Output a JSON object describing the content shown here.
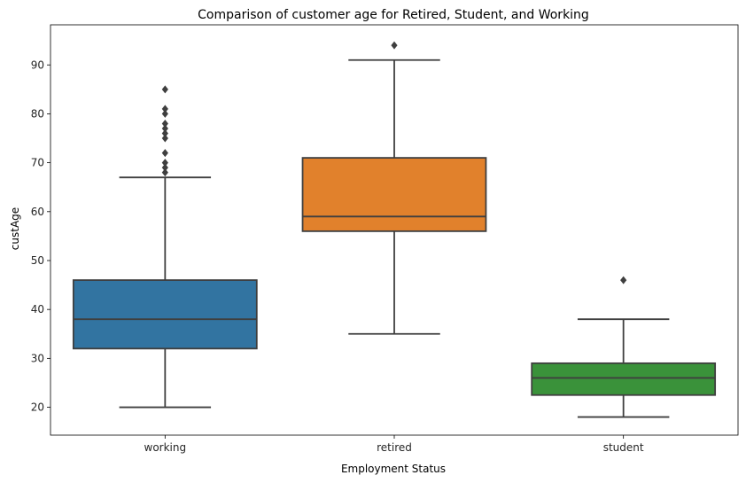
{
  "chart_data": {
    "type": "box",
    "title": "Comparison of customer age for Retired, Student, and Working",
    "xlabel": "Employment Status",
    "ylabel": "custAge",
    "ylim": [
      14.3,
      98.2
    ],
    "yticks": [
      20,
      30,
      40,
      50,
      60,
      70,
      80,
      90
    ],
    "categories": [
      "working",
      "retired",
      "student"
    ],
    "grid": false,
    "legend": "none",
    "boxes": [
      {
        "category": "working",
        "color": "#3274a1",
        "whisker_low": 20,
        "q1": 32,
        "median": 38,
        "q3": 46,
        "whisker_high": 67,
        "outliers": [
          68,
          69,
          70,
          72,
          75,
          76,
          77,
          78,
          80,
          81,
          85
        ]
      },
      {
        "category": "retired",
        "color": "#e1812c",
        "whisker_low": 35,
        "q1": 56,
        "median": 59,
        "q3": 71,
        "whisker_high": 91,
        "outliers": [
          94
        ]
      },
      {
        "category": "student",
        "color": "#3a923a",
        "whisker_low": 18,
        "q1": 22.5,
        "median": 26,
        "q3": 29,
        "whisker_high": 38,
        "outliers": [
          46
        ]
      }
    ],
    "line_color": "#3f3f3f"
  }
}
